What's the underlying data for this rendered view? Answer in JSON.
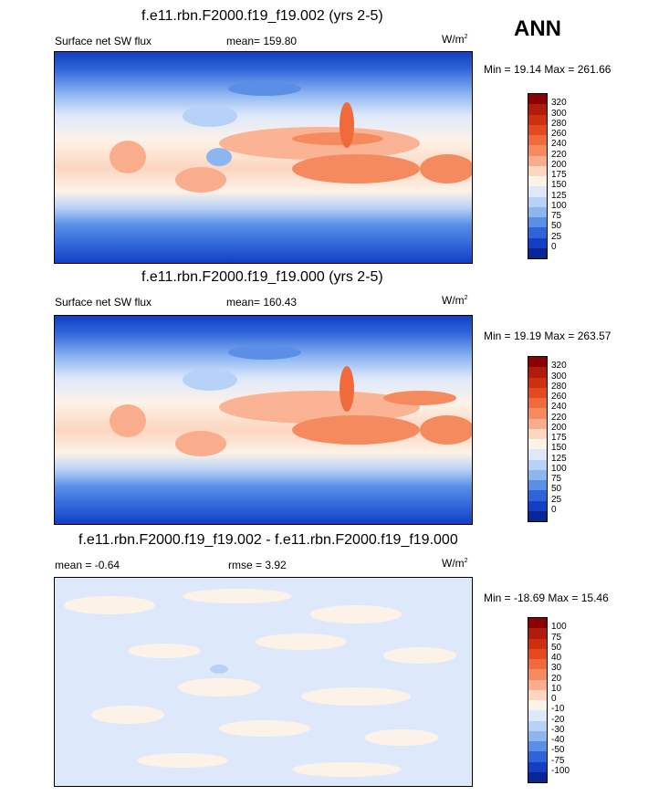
{
  "season": "ANN",
  "panels": [
    {
      "title": "f.e11.rbn.F2000.f19_f19.002 (yrs 2-5)",
      "left_label": "Surface net SW flux",
      "center_label": "mean= 159.80",
      "units": "W/m",
      "units_sup": "2",
      "minmax": "Min =  19.14 Max = 261.66",
      "colorbar_labels": [
        "320",
        "300",
        "280",
        "260",
        "240",
        "220",
        "200",
        "175",
        "150",
        "125",
        "100",
        "75",
        "50",
        "25",
        "0"
      ]
    },
    {
      "title": "f.e11.rbn.F2000.f19_f19.000 (yrs 2-5)",
      "left_label": "Surface net SW flux",
      "center_label": "mean= 160.43",
      "units": "W/m",
      "units_sup": "2",
      "minmax": "Min =  19.19 Max = 263.57",
      "colorbar_labels": [
        "320",
        "300",
        "280",
        "260",
        "240",
        "220",
        "200",
        "175",
        "150",
        "125",
        "100",
        "75",
        "50",
        "25",
        "0"
      ]
    },
    {
      "title": "f.e11.rbn.F2000.f19_f19.002 - f.e11.rbn.F2000.f19_f19.000",
      "left_label": "mean =  -0.64",
      "center_label": "rmse =   3.92",
      "units": "W/m",
      "units_sup": "2",
      "minmax": "Min = -18.69 Max =  15.46",
      "colorbar_labels": [
        "100",
        "75",
        "50",
        "40",
        "30",
        "20",
        "10",
        "0",
        "-10",
        "-20",
        "-30",
        "-40",
        "-50",
        "-75",
        "-100"
      ]
    }
  ],
  "colors": {
    "flux_scale": [
      "#8b0000",
      "#b01c0c",
      "#cf2f10",
      "#e44a1e",
      "#f06a3c",
      "#f58a5e",
      "#f9ad8c",
      "#fcd6bf",
      "#fdf2e8",
      "#dde9fb",
      "#b7d1f7",
      "#8db6f1",
      "#5b8fe6",
      "#2e64d8",
      "#123fc4",
      "#0a2596",
      "#070f6e"
    ],
    "diff_scale": [
      "#8b0000",
      "#b01c0c",
      "#cf2f10",
      "#e44a1e",
      "#f06a3c",
      "#f58a5e",
      "#f9ad8c",
      "#fcd6bf",
      "#fdf2e8",
      "#dde9fb",
      "#b7d1f7",
      "#8db6f1",
      "#5b8fe6",
      "#2e64d8",
      "#123fc4",
      "#0a2596",
      "#070f6e"
    ]
  }
}
